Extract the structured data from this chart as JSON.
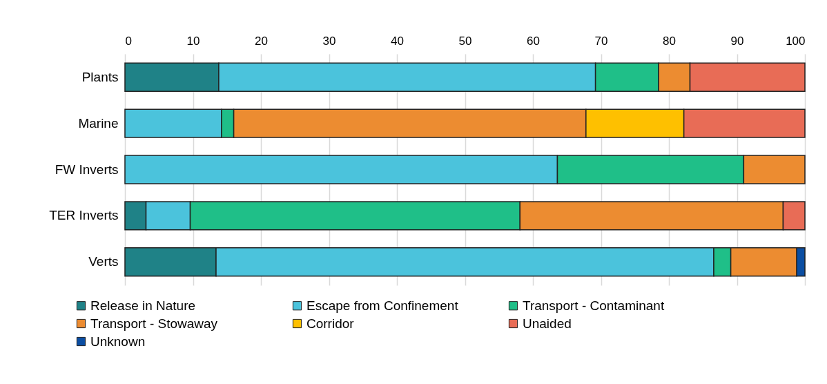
{
  "chart_data": {
    "type": "bar",
    "orientation": "horizontal",
    "stacked": true,
    "categories": [
      "Plants",
      "Marine",
      "FW Inverts",
      "TER Inverts",
      "Verts"
    ],
    "series": [
      {
        "name": "Release in Nature",
        "color": "#1f8287",
        "values": [
          13.8,
          null,
          null,
          3.1,
          13.4
        ]
      },
      {
        "name": "Escape from Confinement",
        "color": "#4bc3dc",
        "values": [
          55.4,
          14.2,
          63.6,
          6.5,
          73.2
        ]
      },
      {
        "name": "Transport - Contaminant",
        "color": "#1fbf88",
        "values": [
          9.3,
          1.8,
          27.4,
          48.5,
          2.5
        ]
      },
      {
        "name": "Transport - Stowaway",
        "color": "#ec8c31",
        "values": [
          4.6,
          51.8,
          9.0,
          38.7,
          9.7
        ]
      },
      {
        "name": "Corridor",
        "color": "#fec000",
        "values": [
          null,
          14.4,
          null,
          null,
          null
        ]
      },
      {
        "name": "Unaided",
        "color": "#e86c56",
        "values": [
          16.9,
          17.8,
          null,
          3.2,
          null
        ]
      },
      {
        "name": "Unknown",
        "color": "#0b4ea2",
        "values": [
          null,
          null,
          null,
          null,
          1.2
        ]
      }
    ],
    "xlim": [
      0,
      100
    ],
    "xticks": [
      0,
      10,
      20,
      30,
      40,
      50,
      60,
      70,
      80,
      90,
      100
    ],
    "grid": "x",
    "legend": "bottom"
  }
}
